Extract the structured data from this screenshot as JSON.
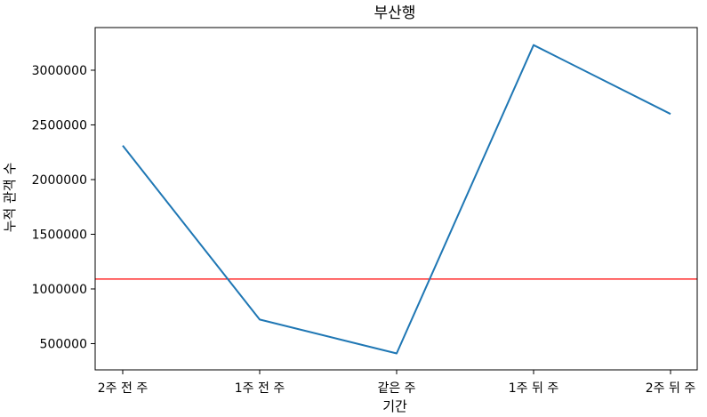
{
  "chart_data": {
    "type": "line",
    "title": "부산행",
    "xlabel": "기간",
    "ylabel": "누적 관객 수",
    "categories": [
      "2주 전 주",
      "1주 전 주",
      "같은 주",
      "1주 뒤 주",
      "2주 뒤 주"
    ],
    "series": [
      {
        "values": [
          2310000,
          720000,
          410000,
          3230000,
          2600000
        ],
        "color": "#1f77b4"
      }
    ],
    "reference_line": {
      "value": 1090000,
      "color": "#ff0000"
    },
    "ylim": [
      260000,
      3390000
    ],
    "yticks": [
      500000,
      1000000,
      1500000,
      2000000,
      2500000,
      3000000
    ],
    "grid": false
  }
}
